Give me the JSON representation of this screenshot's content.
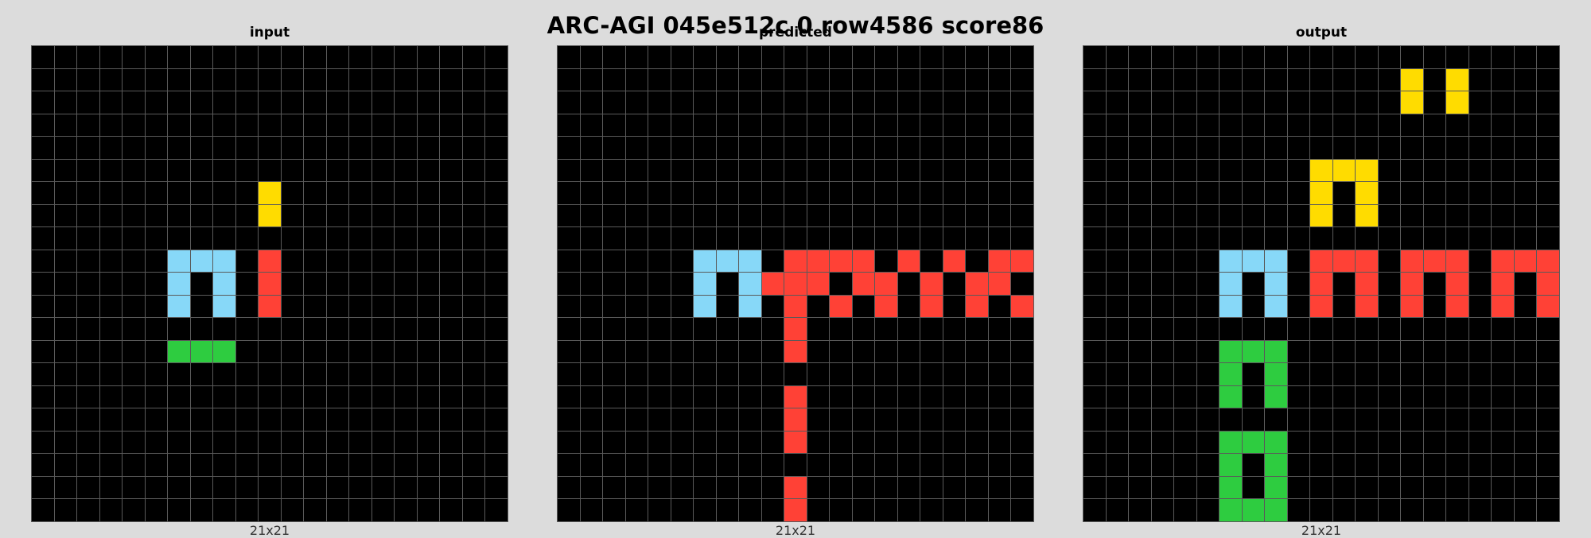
{
  "title": "ARC-AGI 045e512c 0 row4586 score86",
  "palette": {
    "0": "#000000",
    "2": "#ff4136",
    "3": "#2ecc40",
    "4": "#ffdc00",
    "8": "#87d8f8"
  },
  "panels": [
    {
      "key": "input",
      "label": "input",
      "dims": "21x21",
      "cells": [
        [
          6,
          10,
          4
        ],
        [
          7,
          10,
          4
        ],
        [
          9,
          6,
          8
        ],
        [
          9,
          7,
          8
        ],
        [
          9,
          8,
          8
        ],
        [
          10,
          6,
          8
        ],
        [
          10,
          8,
          8
        ],
        [
          11,
          6,
          8
        ],
        [
          11,
          8,
          8
        ],
        [
          9,
          10,
          2
        ],
        [
          10,
          10,
          2
        ],
        [
          11,
          10,
          2
        ],
        [
          13,
          6,
          3
        ],
        [
          13,
          7,
          3
        ],
        [
          13,
          8,
          3
        ]
      ]
    },
    {
      "key": "predicted",
      "label": "predicted",
      "dims": "21x21",
      "cells": [
        [
          9,
          6,
          8
        ],
        [
          9,
          7,
          8
        ],
        [
          9,
          8,
          8
        ],
        [
          10,
          6,
          8
        ],
        [
          10,
          8,
          8
        ],
        [
          11,
          6,
          8
        ],
        [
          11,
          8,
          8
        ],
        [
          9,
          10,
          2
        ],
        [
          9,
          11,
          2
        ],
        [
          9,
          12,
          2
        ],
        [
          9,
          13,
          2
        ],
        [
          9,
          15,
          2
        ],
        [
          9,
          17,
          2
        ],
        [
          9,
          19,
          2
        ],
        [
          9,
          20,
          2
        ],
        [
          10,
          9,
          2
        ],
        [
          10,
          10,
          2
        ],
        [
          10,
          11,
          2
        ],
        [
          10,
          13,
          2
        ],
        [
          10,
          14,
          2
        ],
        [
          10,
          16,
          2
        ],
        [
          10,
          18,
          2
        ],
        [
          10,
          19,
          2
        ],
        [
          11,
          10,
          2
        ],
        [
          11,
          12,
          2
        ],
        [
          11,
          14,
          2
        ],
        [
          11,
          16,
          2
        ],
        [
          11,
          18,
          2
        ],
        [
          11,
          20,
          2
        ],
        [
          12,
          10,
          2
        ],
        [
          13,
          10,
          2
        ],
        [
          15,
          10,
          2
        ],
        [
          16,
          10,
          2
        ],
        [
          17,
          10,
          2
        ],
        [
          19,
          10,
          2
        ],
        [
          20,
          10,
          2
        ]
      ]
    },
    {
      "key": "output",
      "label": "output",
      "dims": "21x21",
      "cells": [
        [
          1,
          14,
          4
        ],
        [
          1,
          16,
          4
        ],
        [
          2,
          14,
          4
        ],
        [
          2,
          16,
          4
        ],
        [
          5,
          10,
          4
        ],
        [
          5,
          11,
          4
        ],
        [
          5,
          12,
          4
        ],
        [
          6,
          10,
          4
        ],
        [
          6,
          12,
          4
        ],
        [
          7,
          10,
          4
        ],
        [
          7,
          12,
          4
        ],
        [
          9,
          6,
          8
        ],
        [
          9,
          7,
          8
        ],
        [
          9,
          8,
          8
        ],
        [
          10,
          6,
          8
        ],
        [
          10,
          8,
          8
        ],
        [
          11,
          6,
          8
        ],
        [
          11,
          8,
          8
        ],
        [
          9,
          10,
          2
        ],
        [
          9,
          11,
          2
        ],
        [
          9,
          12,
          2
        ],
        [
          10,
          10,
          2
        ],
        [
          10,
          12,
          2
        ],
        [
          11,
          10,
          2
        ],
        [
          11,
          12,
          2
        ],
        [
          9,
          14,
          2
        ],
        [
          9,
          15,
          2
        ],
        [
          9,
          16,
          2
        ],
        [
          10,
          14,
          2
        ],
        [
          10,
          16,
          2
        ],
        [
          11,
          14,
          2
        ],
        [
          11,
          16,
          2
        ],
        [
          9,
          18,
          2
        ],
        [
          9,
          19,
          2
        ],
        [
          9,
          20,
          2
        ],
        [
          10,
          18,
          2
        ],
        [
          10,
          20,
          2
        ],
        [
          11,
          18,
          2
        ],
        [
          11,
          20,
          2
        ],
        [
          13,
          6,
          3
        ],
        [
          13,
          7,
          3
        ],
        [
          13,
          8,
          3
        ],
        [
          14,
          6,
          3
        ],
        [
          14,
          8,
          3
        ],
        [
          15,
          6,
          3
        ],
        [
          15,
          8,
          3
        ],
        [
          17,
          6,
          3
        ],
        [
          17,
          7,
          3
        ],
        [
          17,
          8,
          3
        ],
        [
          18,
          6,
          3
        ],
        [
          18,
          8,
          3
        ],
        [
          19,
          6,
          3
        ],
        [
          19,
          8,
          3
        ],
        [
          20,
          6,
          3
        ],
        [
          20,
          7,
          3
        ],
        [
          20,
          8,
          3
        ]
      ]
    }
  ]
}
